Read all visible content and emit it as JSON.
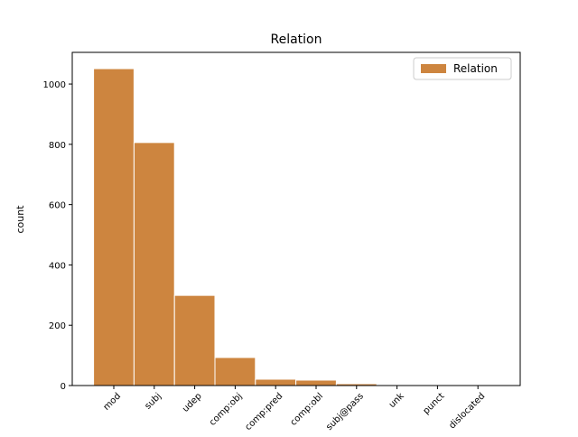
{
  "chart_data": {
    "type": "bar",
    "title": "Relation",
    "y_label": "count",
    "categories": [
      "mod",
      "subj",
      "udep",
      "comp:obj",
      "comp:pred",
      "comp:obl",
      "subj@pass",
      "unk",
      "punct",
      "dislocated"
    ],
    "series": [
      {
        "name": "Relation",
        "color": "#cd853f",
        "values": [
          1051,
          806,
          299,
          93,
          21,
          18,
          6,
          1,
          1,
          1
        ]
      }
    ],
    "ylim": [
      0,
      1105
    ],
    "yticks": [
      0,
      200,
      400,
      600,
      800,
      1000
    ],
    "legend": "upper right"
  }
}
